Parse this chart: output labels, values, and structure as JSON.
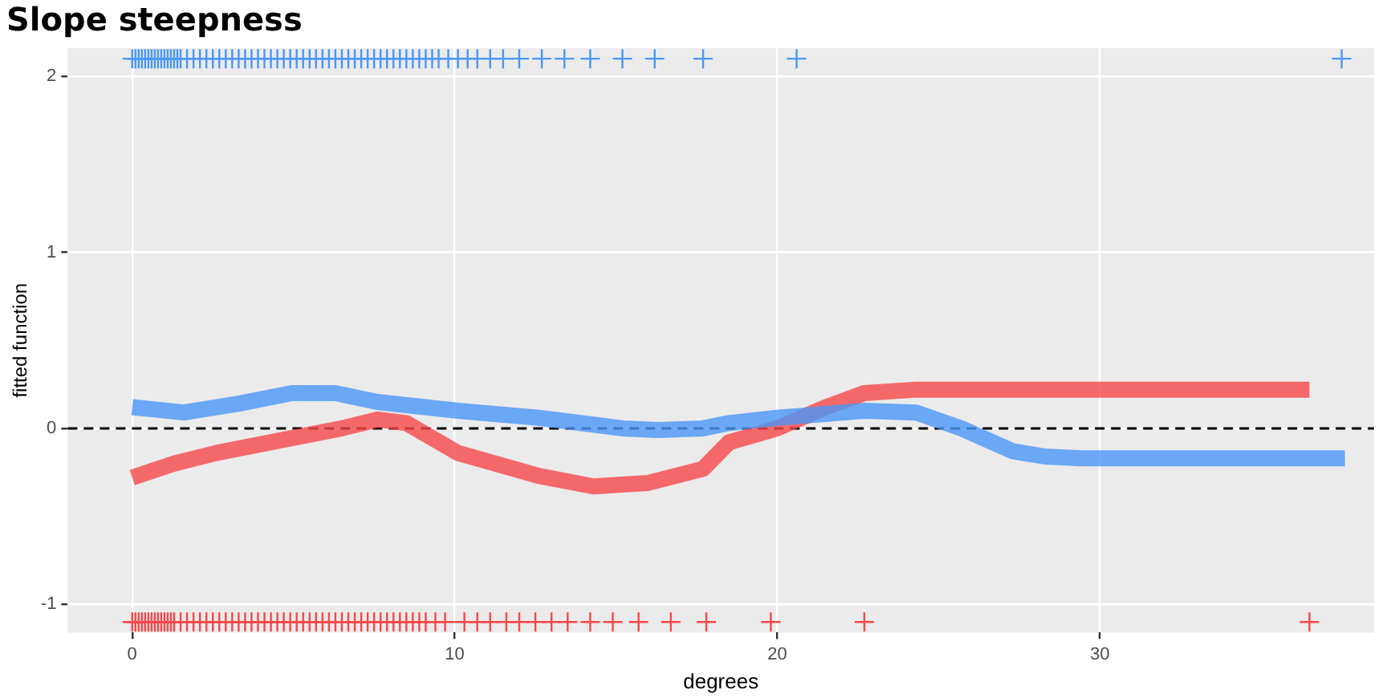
{
  "chart_data": {
    "type": "line",
    "title": "Slope steepness",
    "xlabel": "degrees",
    "ylabel": "fitted function",
    "xlim": [
      -2,
      38.5
    ],
    "ylim": [
      -1.16,
      2.16
    ],
    "xticks": [
      0,
      10,
      20,
      30
    ],
    "yticks": [
      -1,
      0,
      1,
      2
    ],
    "grid": true,
    "legend": false,
    "ref_lines": [
      {
        "axis": "y",
        "value": 0,
        "color": "#000000",
        "line_style": "dashed"
      }
    ],
    "series": [
      {
        "color": "#4a96f7",
        "marker": "none",
        "x": [
          0,
          1.6,
          3.3,
          4.95,
          6.3,
          7.6,
          10.1,
          12.6,
          15.2,
          16.3,
          17.7,
          18.5,
          20,
          22.7,
          24.3,
          25.7,
          27.3,
          28.3,
          29.4,
          33,
          37.6
        ],
        "values": [
          0.12,
          0.09,
          0.14,
          0.2,
          0.2,
          0.15,
          0.1,
          0.06,
          0,
          -0.01,
          0,
          0.03,
          0.06,
          0.1,
          0.09,
          0,
          -0.13,
          -0.16,
          -0.17,
          -0.17,
          -0.17
        ]
      },
      {
        "color": "#f8474a",
        "marker": "none",
        "x": [
          0,
          1.3,
          2.6,
          5.1,
          6.5,
          7.6,
          8.5,
          10.1,
          12.6,
          14.3,
          16,
          17.7,
          18.5,
          20,
          21.5,
          22.7,
          24.3,
          30,
          36.5
        ],
        "values": [
          -0.28,
          -0.2,
          -0.14,
          -0.05,
          0,
          0.05,
          0.03,
          -0.14,
          -0.27,
          -0.33,
          -0.31,
          -0.23,
          -0.08,
          0,
          0.12,
          0.2,
          0.22,
          0.22,
          0.22
        ]
      },
      {
        "type": "scatter",
        "color": "#4a96f7",
        "marker": "cross",
        "x": [
          0,
          0.1,
          0.2,
          0.3,
          0.4,
          0.5,
          0.6,
          0.7,
          0.8,
          0.9,
          1,
          1.1,
          1.2,
          1.3,
          1.4,
          1.5,
          1.7,
          1.9,
          2.1,
          2.3,
          2.5,
          2.7,
          2.9,
          3.1,
          3.3,
          3.5,
          3.7,
          3.9,
          4.1,
          4.3,
          4.5,
          4.7,
          4.9,
          5.1,
          5.3,
          5.5,
          5.7,
          5.9,
          6.1,
          6.3,
          6.5,
          6.7,
          6.9,
          7.1,
          7.3,
          7.5,
          7.7,
          7.9,
          8.1,
          8.3,
          8.5,
          8.7,
          8.9,
          9.1,
          9.3,
          9.5,
          9.8,
          10.1,
          10.4,
          10.7,
          11.1,
          11.5,
          12,
          12.7,
          13.4,
          14.2,
          15.2,
          16.2,
          17.7,
          20.6,
          37.5
        ],
        "values": [
          2.1,
          2.1,
          2.1,
          2.1,
          2.1,
          2.1,
          2.1,
          2.1,
          2.1,
          2.1,
          2.1,
          2.1,
          2.1,
          2.1,
          2.1,
          2.1,
          2.1,
          2.1,
          2.1,
          2.1,
          2.1,
          2.1,
          2.1,
          2.1,
          2.1,
          2.1,
          2.1,
          2.1,
          2.1,
          2.1,
          2.1,
          2.1,
          2.1,
          2.1,
          2.1,
          2.1,
          2.1,
          2.1,
          2.1,
          2.1,
          2.1,
          2.1,
          2.1,
          2.1,
          2.1,
          2.1,
          2.1,
          2.1,
          2.1,
          2.1,
          2.1,
          2.1,
          2.1,
          2.1,
          2.1,
          2.1,
          2.1,
          2.1,
          2.1,
          2.1,
          2.1,
          2.1,
          2.1,
          2.1,
          2.1,
          2.1,
          2.1,
          2.1,
          2.1,
          2.1,
          2.1
        ]
      },
      {
        "type": "scatter",
        "color": "#f8474a",
        "marker": "cross",
        "x": [
          0,
          0.1,
          0.2,
          0.3,
          0.4,
          0.5,
          0.6,
          0.7,
          0.8,
          0.9,
          1,
          1.1,
          1.2,
          1.3,
          1.5,
          1.7,
          1.9,
          2.1,
          2.3,
          2.5,
          2.7,
          2.9,
          3.1,
          3.3,
          3.5,
          3.7,
          3.9,
          4.1,
          4.3,
          4.5,
          4.7,
          4.9,
          5.1,
          5.3,
          5.5,
          5.7,
          5.9,
          6.1,
          6.3,
          6.5,
          6.7,
          6.9,
          7.1,
          7.3,
          7.5,
          7.7,
          7.9,
          8.1,
          8.3,
          8.5,
          8.7,
          8.9,
          9.1,
          9.4,
          9.7,
          10.3,
          10.7,
          11.1,
          11.6,
          12,
          12.5,
          13,
          13.5,
          14.2,
          14.9,
          15.7,
          16.7,
          17.8,
          19.8,
          22.7,
          36.5
        ],
        "values": [
          -1.1,
          -1.1,
          -1.1,
          -1.1,
          -1.1,
          -1.1,
          -1.1,
          -1.1,
          -1.1,
          -1.1,
          -1.1,
          -1.1,
          -1.1,
          -1.1,
          -1.1,
          -1.1,
          -1.1,
          -1.1,
          -1.1,
          -1.1,
          -1.1,
          -1.1,
          -1.1,
          -1.1,
          -1.1,
          -1.1,
          -1.1,
          -1.1,
          -1.1,
          -1.1,
          -1.1,
          -1.1,
          -1.1,
          -1.1,
          -1.1,
          -1.1,
          -1.1,
          -1.1,
          -1.1,
          -1.1,
          -1.1,
          -1.1,
          -1.1,
          -1.1,
          -1.1,
          -1.1,
          -1.1,
          -1.1,
          -1.1,
          -1.1,
          -1.1,
          -1.1,
          -1.1,
          -1.1,
          -1.1,
          -1.1,
          -1.1,
          -1.1,
          -1.1,
          -1.1,
          -1.1,
          -1.1,
          -1.1,
          -1.1,
          -1.1,
          -1.1,
          -1.1,
          -1.1,
          -1.1,
          -1.1,
          -1.1
        ]
      }
    ]
  }
}
